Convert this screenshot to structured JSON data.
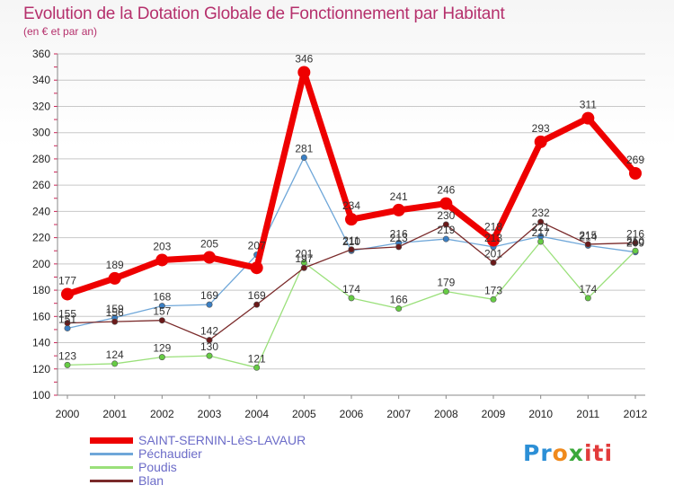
{
  "header": {
    "title": "Evolution de la Dotation Globale de Fonctionnement par Habitant",
    "subtitle": "(en € et par an)"
  },
  "logo": {
    "text": "Proxiti",
    "parts": [
      "Pr",
      "o",
      "x",
      "iti"
    ]
  },
  "colors": {
    "title": "#b5306c",
    "grid": "#c8c8c8",
    "axis": "#888888",
    "accent_ticks": "#cc2255",
    "legend_text": "#6c6cc8"
  },
  "chart_data": {
    "type": "line",
    "title": "Evolution de la Dotation Globale de Fonctionnement par Habitant",
    "subtitle": "(en € et par an)",
    "xlabel": "",
    "ylabel": "",
    "categories": [
      "2000",
      "2001",
      "2002",
      "2003",
      "2004",
      "2005",
      "2006",
      "2007",
      "2008",
      "2009",
      "2010",
      "2011",
      "2012"
    ],
    "ylim": [
      100,
      360
    ],
    "yticks": [
      "100",
      "120",
      "140",
      "160",
      "180",
      "200",
      "220",
      "240",
      "260",
      "280",
      "300",
      "320",
      "340",
      "360"
    ],
    "grid": true,
    "legend_position": "bottom-left",
    "series": [
      {
        "name": "SAINT-SERNIN-LèS-LAVAUR",
        "color": "#ee0000",
        "marker": "#ee0000",
        "width": 7,
        "values": [
          177,
          189,
          203,
          205,
          197,
          346,
          234,
          241,
          246,
          218,
          293,
          311,
          269
        ],
        "labels": [
          "177",
          "189",
          "203",
          "205",
          "",
          "346",
          "234",
          "241",
          "246",
          "218",
          "293",
          "311",
          "269"
        ]
      },
      {
        "name": "Péchaudier",
        "color": "#6fa7d9",
        "marker": "#3a7fc4",
        "width": 1.3,
        "values": [
          151,
          159,
          168,
          169,
          207,
          281,
          210,
          216,
          219,
          213,
          221,
          214,
          209
        ],
        "labels": [
          "151",
          "159",
          "168",
          "169",
          "207",
          "281",
          "210",
          "216",
          "219",
          "213",
          "221",
          "214",
          "209"
        ]
      },
      {
        "name": "Poudis",
        "color": "#9ae07a",
        "marker": "#66cc44",
        "width": 1.3,
        "values": [
          123,
          124,
          129,
          130,
          121,
          201,
          174,
          166,
          179,
          173,
          217,
          174,
          210
        ],
        "labels": [
          "123",
          "124",
          "129",
          "130",
          "121",
          "201",
          "174",
          "166",
          "179",
          "173",
          "217",
          "174",
          "210"
        ]
      },
      {
        "name": "Blan",
        "color": "#7a2a2a",
        "marker": "#6b1a1a",
        "width": 1.3,
        "values": [
          155,
          156,
          157,
          142,
          169,
          197,
          211,
          213,
          230,
          201,
          232,
          215,
          216
        ],
        "labels": [
          "155",
          "156",
          "157",
          "142",
          "169",
          "197",
          "211",
          "213",
          "230",
          "201",
          "232",
          "215",
          "216"
        ]
      }
    ]
  }
}
